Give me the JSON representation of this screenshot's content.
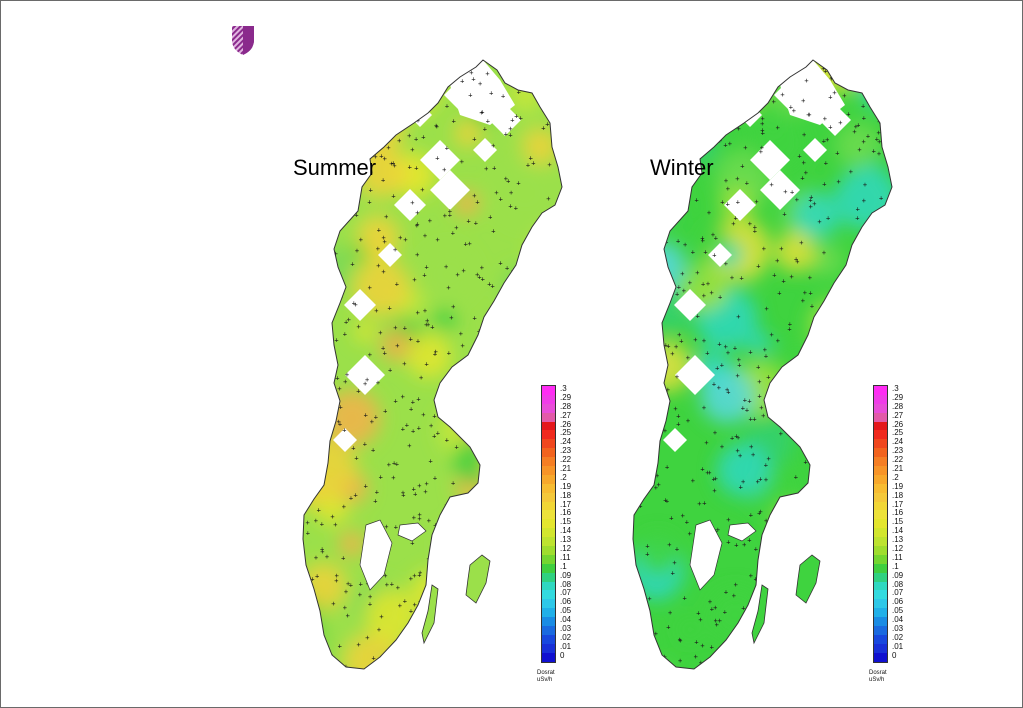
{
  "maps": [
    {
      "id": "summer",
      "label": "Summer",
      "palette": [
        "#9be04a",
        "#c8e838",
        "#e4e62e",
        "#f0d23a",
        "#78d858",
        "#3fcf3f",
        "#f3b24a"
      ]
    },
    {
      "id": "winter",
      "label": "Winter",
      "palette": [
        "#3fd33f",
        "#34d070",
        "#6fdc4f",
        "#2fd8c0",
        "#a6e23c",
        "#e3e03a",
        "#58d8e0"
      ]
    }
  ],
  "legend": {
    "ticks": [
      ".3",
      ".29",
      ".28",
      ".27",
      ".26",
      ".25",
      ".24",
      ".23",
      ".22",
      ".21",
      ".2",
      ".19",
      ".18",
      ".17",
      ".16",
      ".15",
      ".14",
      ".13",
      ".12",
      ".11",
      ".1",
      ".09",
      ".08",
      ".07",
      ".06",
      ".05",
      ".04",
      ".03",
      ".02",
      ".01",
      "0"
    ],
    "colors": [
      "#ff2cf4",
      "#f03ce8",
      "#e84ed8",
      "#e25aa8",
      "#e4171c",
      "#f02a1e",
      "#f0471e",
      "#f2631e",
      "#f57e24",
      "#f79428",
      "#f7a82c",
      "#f7bc32",
      "#f4c83a",
      "#f1d636",
      "#ede23a",
      "#e4e62e",
      "#d2e62e",
      "#bde330",
      "#9fdd2e",
      "#74d630",
      "#3fcf3f",
      "#2fd180",
      "#2fd8c0",
      "#33dadf",
      "#2ec8e8",
      "#21b0e8",
      "#1a8ce4",
      "#1a6ae0",
      "#1848de",
      "#1830d8",
      "#1010d0"
    ],
    "unit_line1": "Dosrat",
    "unit_line2": "uSv/h"
  },
  "colors": {
    "outline": "#333333",
    "markers": "#1a1a1a",
    "logo_purple": "#8a2a8c",
    "logo_light": "#d6a6d6"
  }
}
